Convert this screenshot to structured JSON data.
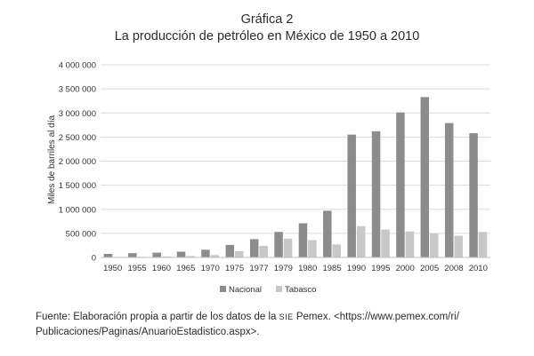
{
  "title_line1": "Gráfica 2",
  "title_line2": "La producción de petróleo en México de 1950 a 2010",
  "source": {
    "prefix": "Fuente: Elaboración propia a partir de los datos de la ",
    "agency": "SIE",
    "suffix_line1": " Pemex. <https://www.pemex.com/ri/",
    "line2": "Publicaciones/Paginas/AnuarioEstadistico.aspx>."
  },
  "colors": {
    "nacional": "#8c8c8c",
    "tabasco": "#c8c8c8",
    "gridline": "#dcdcdc",
    "axis": "#bfbfbf"
  },
  "chart_data": {
    "type": "bar",
    "title": "Gráfica 2 — La producción de petróleo en México de 1950 a 2010",
    "xlabel": "",
    "ylabel": "Miles de barriles al día",
    "ylim": [
      0,
      4000000
    ],
    "yticks": [
      0,
      500000,
      1000000,
      1500000,
      2000000,
      2500000,
      3000000,
      3500000,
      4000000
    ],
    "ytick_labels": [
      "0",
      "500 000",
      "1 000 000",
      "1 500 000",
      "2 000 000",
      "2 500 000",
      "3 000 000",
      "3 500 000",
      "4 000 000"
    ],
    "categories": [
      "1950",
      "1955",
      "1960",
      "1965",
      "1970",
      "1975",
      "1977",
      "1979",
      "1980",
      "1985",
      "1990",
      "1995",
      "2000",
      "2005",
      "2008",
      "2010"
    ],
    "series": [
      {
        "name": "Nacional",
        "values": [
          75000,
          90000,
          100000,
          120000,
          160000,
          260000,
          380000,
          530000,
          710000,
          970000,
          2550000,
          2620000,
          3010000,
          3330000,
          2790000,
          2580000
        ]
      },
      {
        "name": "Tabasco",
        "values": [
          10000,
          15000,
          20000,
          30000,
          50000,
          130000,
          240000,
          390000,
          360000,
          270000,
          650000,
          580000,
          540000,
          500000,
          450000,
          530000
        ]
      }
    ],
    "legend": "bottom-center",
    "grid": true
  }
}
